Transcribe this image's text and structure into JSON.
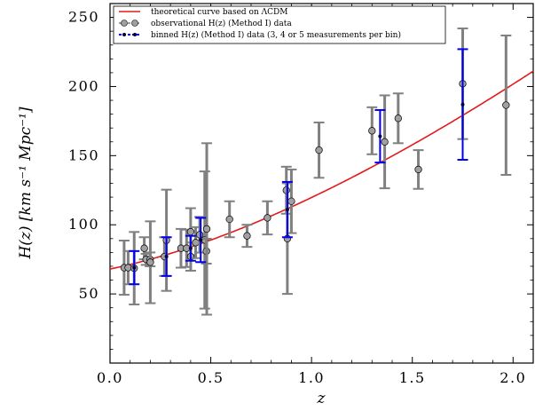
{
  "chart_data": {
    "type": "scatter",
    "xlabel": "z",
    "ylabel": "H(z) [km s⁻¹ Mpc⁻¹]",
    "xlim": [
      0.0,
      2.1
    ],
    "ylim": [
      0,
      260
    ],
    "x_ticks": [
      "0.0",
      "0.5",
      "1.0",
      "1.5",
      "2.0"
    ],
    "x_tick_values": [
      0.0,
      0.5,
      1.0,
      1.5,
      2.0
    ],
    "y_ticks": [
      "50",
      "100",
      "150",
      "200",
      "250"
    ],
    "y_tick_values": [
      50,
      100,
      150,
      200,
      250
    ],
    "grid": false,
    "legend_position": "top-left",
    "legend": [
      {
        "label": "theoretical curve based on ΛCDM",
        "kind": "line",
        "color": "#e31a1c"
      },
      {
        "label": "observational H(z) (Method I) data",
        "kind": "marker",
        "color": "#808080"
      },
      {
        "label": "binned H(z) (Method I) data (3, 4 or 5 measurements per bin)",
        "kind": "marker",
        "color": "#0000ee"
      }
    ],
    "series": [
      {
        "name": "theoretical curve based on ΛCDM",
        "kind": "line",
        "color": "#e31a1c",
        "model": {
          "H0": 68,
          "Om": 0.3,
          "OL": 0.7
        }
      },
      {
        "name": "observational H(z) (Method I) data",
        "kind": "errorbar",
        "color": "#808080",
        "points": [
          {
            "x": 0.07,
            "y": 69,
            "err": 19.6
          },
          {
            "x": 0.09,
            "y": 69,
            "err": 12
          },
          {
            "x": 0.12,
            "y": 68.6,
            "err": 26.2
          },
          {
            "x": 0.17,
            "y": 83,
            "err": 8
          },
          {
            "x": 0.179,
            "y": 75,
            "err": 4
          },
          {
            "x": 0.199,
            "y": 75,
            "err": 5
          },
          {
            "x": 0.2,
            "y": 72.9,
            "err": 29.6
          },
          {
            "x": 0.27,
            "y": 77,
            "err": 14
          },
          {
            "x": 0.28,
            "y": 88.8,
            "err": 36.6
          },
          {
            "x": 0.352,
            "y": 83,
            "err": 14
          },
          {
            "x": 0.38,
            "y": 83,
            "err": 13.5
          },
          {
            "x": 0.4,
            "y": 95,
            "err": 17
          },
          {
            "x": 0.4004,
            "y": 77,
            "err": 10.2
          },
          {
            "x": 0.425,
            "y": 87.1,
            "err": 11.2
          },
          {
            "x": 0.445,
            "y": 92.8,
            "err": 12.9
          },
          {
            "x": 0.47,
            "y": 89,
            "err": 49.6
          },
          {
            "x": 0.4783,
            "y": 80.9,
            "err": 9
          },
          {
            "x": 0.48,
            "y": 97,
            "err": 62
          },
          {
            "x": 0.593,
            "y": 104,
            "err": 13
          },
          {
            "x": 0.68,
            "y": 92,
            "err": 8
          },
          {
            "x": 0.781,
            "y": 105,
            "err": 12
          },
          {
            "x": 0.875,
            "y": 125,
            "err": 17
          },
          {
            "x": 0.88,
            "y": 90,
            "err": 40
          },
          {
            "x": 0.9,
            "y": 117,
            "err": 23
          },
          {
            "x": 1.037,
            "y": 154,
            "err": 20
          },
          {
            "x": 1.3,
            "y": 168,
            "err": 17
          },
          {
            "x": 1.363,
            "y": 160,
            "err": 33.6
          },
          {
            "x": 1.43,
            "y": 177,
            "err": 18
          },
          {
            "x": 1.53,
            "y": 140,
            "err": 14
          },
          {
            "x": 1.75,
            "y": 202,
            "err": 40
          },
          {
            "x": 1.965,
            "y": 186.5,
            "err": 50.4
          }
        ]
      },
      {
        "name": "binned H(z) (Method I) data (3, 4 or 5 measurements per bin)",
        "kind": "errorbar",
        "color": "#0000ee",
        "points": [
          {
            "x": 0.12,
            "y": 69,
            "err": 12
          },
          {
            "x": 0.28,
            "y": 77,
            "err": 14
          },
          {
            "x": 0.4,
            "y": 83,
            "err": 9
          },
          {
            "x": 0.45,
            "y": 89,
            "err": 16
          },
          {
            "x": 0.88,
            "y": 111,
            "err": 20
          },
          {
            "x": 1.34,
            "y": 164,
            "err": 19
          },
          {
            "x": 1.75,
            "y": 187,
            "err": 40
          }
        ]
      }
    ]
  }
}
